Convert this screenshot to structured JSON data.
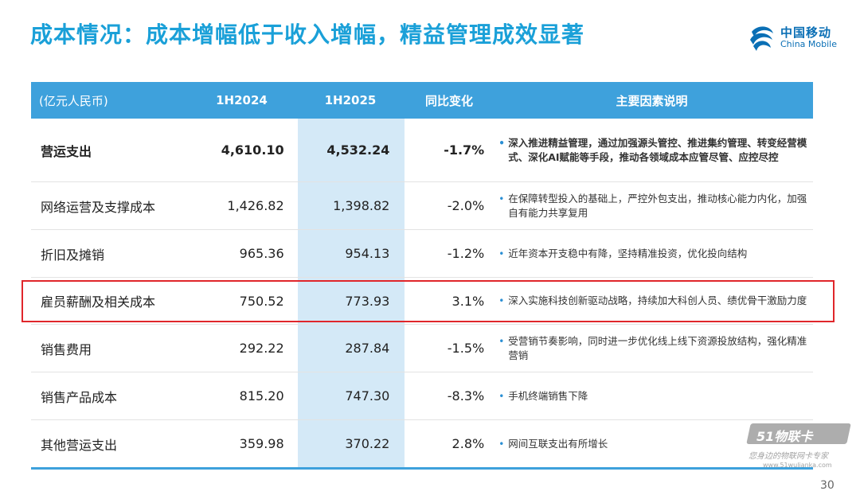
{
  "title": "成本情况：成本增幅低于收入增幅，精益管理成效显著",
  "logo": {
    "cn": "中国移动",
    "en": "China Mobile",
    "icon": "china-mobile-logo-icon",
    "color": "#0a6fb5"
  },
  "colors": {
    "title": "#1aa0d8",
    "header_bg": "#3ea1dc",
    "highlight_col": "#d4e9f7",
    "annotation_box": "#e0262b"
  },
  "table": {
    "headers": [
      "(亿元人民币)",
      "1H2024",
      "1H2025",
      "同比变化",
      "主要因素说明"
    ],
    "rows": [
      {
        "name": "营运支出",
        "v2024": "4,610.10",
        "v2025": "4,532.24",
        "yoy": "-1.7%",
        "note": "深入推进精益管理，通过加强源头管控、推进集约管理、转变经营模式、深化AI赋能等手段，推动各领域成本应管尽管、应控尽控"
      },
      {
        "name": "网络运营及支撑成本",
        "v2024": "1,426.82",
        "v2025": "1,398.82",
        "yoy": "-2.0%",
        "note": "在保障转型投入的基础上，严控外包支出，推动核心能力内化，加强自有能力共享复用"
      },
      {
        "name": "折旧及摊销",
        "v2024": "965.36",
        "v2025": "954.13",
        "yoy": "-1.2%",
        "note": "近年资本开支稳中有降，坚持精准投资，优化投向结构"
      },
      {
        "name": "雇员薪酬及相关成本",
        "v2024": "750.52",
        "v2025": "773.93",
        "yoy": "3.1%",
        "note": "深入实施科技创新驱动战略，持续加大科创人员、绩优骨干激励力度"
      },
      {
        "name": "销售费用",
        "v2024": "292.22",
        "v2025": "287.84",
        "yoy": "-1.5%",
        "note": "受营销节奏影响，同时进一步优化线上线下资源投放结构，强化精准营销"
      },
      {
        "name": "销售产品成本",
        "v2024": "815.20",
        "v2025": "747.30",
        "yoy": "-8.3%",
        "note": "手机终端销售下降"
      },
      {
        "name": "其他营运支出",
        "v2024": "359.98",
        "v2025": "370.22",
        "yoy": "2.8%",
        "note": "网间互联支出有所增长"
      }
    ]
  },
  "page_number": "30",
  "watermark": {
    "brand": "51物联卡",
    "slogan": "您身边的物联网卡专家",
    "url": "www.51wulianka.com"
  }
}
